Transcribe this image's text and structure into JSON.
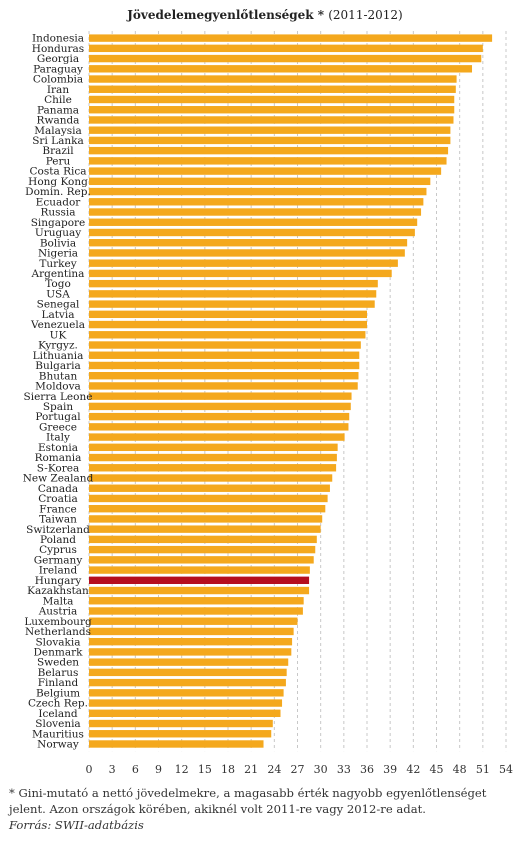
{
  "chart_data": {
    "type": "bar",
    "orientation": "horizontal",
    "title": "Jövedelemegyenlőtlenségek",
    "title_suffix": "*",
    "subtitle": "(2011-2012)",
    "xlim": [
      0,
      54
    ],
    "xticks": [
      0,
      3,
      6,
      9,
      12,
      15,
      18,
      21,
      24,
      27,
      30,
      33,
      36,
      39,
      42,
      45,
      48,
      51,
      54
    ],
    "grid": "vertical-dashed",
    "bar_color": "#f4a81d",
    "highlight_color": "#b50d1e",
    "highlight_category": "Hungary",
    "categories": [
      "Indonesia",
      "Honduras",
      "Georgia",
      "Paraguay",
      "Colombia",
      "Iran",
      "Chile",
      "Panama",
      "Rwanda",
      "Malaysia",
      "Sri Lanka",
      "Brazil",
      "Peru",
      "Costa Rica",
      "Hong Kong",
      "Domin. Rep.",
      "Ecuador",
      "Russia",
      "Singapore",
      "Uruguay",
      "Bolivia",
      "Nigeria",
      "Turkey",
      "Argentina",
      "Togo",
      "USA",
      "Senegal",
      "Latvia",
      "Venezuela",
      "UK",
      "Kyrgyz.",
      "Lithuania",
      "Bulgaria",
      "Bhutan",
      "Moldova",
      "Sierra Leone",
      "Spain",
      "Portugal",
      "Greece",
      "Italy",
      "Estonia",
      "Romania",
      "S-Korea",
      "New Zealand",
      "Canada",
      "Croatia",
      "France",
      "Taiwan",
      "Switzerland",
      "Poland",
      "Cyprus",
      "Germany",
      "Ireland",
      "Hungary",
      "Kazakhstan",
      "Malta",
      "Austria",
      "Luxembourg",
      "Netherlands",
      "Slovakia",
      "Denmark",
      "Sweden",
      "Belarus",
      "Finland",
      "Belgium",
      "Czech Rep.",
      "Iceland",
      "Slovenia",
      "Mauritius",
      "Norway"
    ],
    "values": [
      52.2,
      51,
      50.8,
      49.6,
      47.6,
      47.5,
      47.3,
      47.3,
      47.2,
      46.8,
      46.8,
      46.5,
      46.3,
      45.6,
      44.2,
      43.7,
      43.3,
      43,
      42.5,
      42.2,
      41.2,
      40.9,
      40,
      39.2,
      37.4,
      37.2,
      37,
      36,
      36,
      35.8,
      35.2,
      35,
      35,
      34.9,
      34.8,
      34,
      33.9,
      33.7,
      33.6,
      33.1,
      32.2,
      32.1,
      32,
      31.5,
      31.2,
      30.9,
      30.6,
      30.2,
      30,
      29.5,
      29.3,
      29.1,
      28.6,
      28.5,
      28.5,
      27.8,
      27.7,
      27,
      26.5,
      26.3,
      26.2,
      25.8,
      25.6,
      25.5,
      25.2,
      25,
      24.8,
      23.8,
      23.6,
      22.6
    ]
  },
  "footnote": "* Gini-mutató a nettó jövedelmekre, a magasabb érték nagyobb egyenlőtlenséget jelent. Azon országok körében, akiknél volt 2011-re vagy 2012-re adat.",
  "source": "Forrás: SWII-adatbázis"
}
